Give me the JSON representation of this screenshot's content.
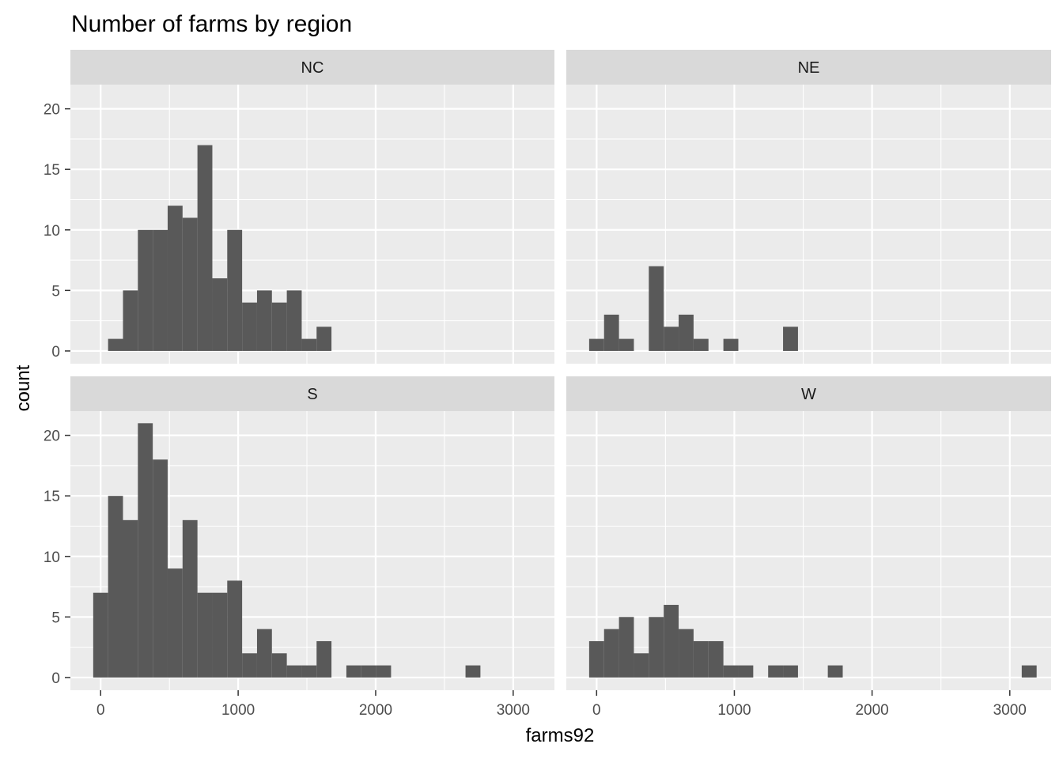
{
  "chart_data": {
    "type": "bar",
    "title": "Number of farms by region",
    "xlabel": "farms92",
    "ylabel": "count",
    "xlim": [
      -220,
      3300
    ],
    "ylim": [
      -1.05,
      22.0
    ],
    "x_ticks": [
      "0",
      "1000",
      "2000",
      "3000"
    ],
    "y_ticks": [
      "0",
      "5",
      "10",
      "15",
      "20"
    ],
    "bin_width": 108.3,
    "grid": true,
    "facets": [
      {
        "name": "NC",
        "bins": [
          {
            "x": 108.3,
            "count": 1
          },
          {
            "x": 216.6,
            "count": 5
          },
          {
            "x": 324.9,
            "count": 10
          },
          {
            "x": 433.2,
            "count": 10
          },
          {
            "x": 541.5,
            "count": 12
          },
          {
            "x": 649.8,
            "count": 11
          },
          {
            "x": 758.1,
            "count": 17
          },
          {
            "x": 866.4,
            "count": 6
          },
          {
            "x": 974.7,
            "count": 10
          },
          {
            "x": 1083.0,
            "count": 4
          },
          {
            "x": 1191.3,
            "count": 5
          },
          {
            "x": 1299.6,
            "count": 4
          },
          {
            "x": 1407.9,
            "count": 5
          },
          {
            "x": 1516.2,
            "count": 1
          },
          {
            "x": 1624.5,
            "count": 2
          }
        ]
      },
      {
        "name": "NE",
        "bins": [
          {
            "x": 0,
            "count": 1
          },
          {
            "x": 108.3,
            "count": 3
          },
          {
            "x": 216.6,
            "count": 1
          },
          {
            "x": 433.2,
            "count": 7
          },
          {
            "x": 541.5,
            "count": 2
          },
          {
            "x": 649.8,
            "count": 3
          },
          {
            "x": 758.1,
            "count": 1
          },
          {
            "x": 974.7,
            "count": 1
          },
          {
            "x": 1407.9,
            "count": 2
          }
        ]
      },
      {
        "name": "S",
        "bins": [
          {
            "x": 0,
            "count": 7
          },
          {
            "x": 108.3,
            "count": 15
          },
          {
            "x": 216.6,
            "count": 13
          },
          {
            "x": 324.9,
            "count": 21
          },
          {
            "x": 433.2,
            "count": 18
          },
          {
            "x": 541.5,
            "count": 9
          },
          {
            "x": 649.8,
            "count": 13
          },
          {
            "x": 758.1,
            "count": 7
          },
          {
            "x": 866.4,
            "count": 7
          },
          {
            "x": 974.7,
            "count": 8
          },
          {
            "x": 1083.0,
            "count": 2
          },
          {
            "x": 1191.3,
            "count": 4
          },
          {
            "x": 1299.6,
            "count": 2
          },
          {
            "x": 1407.9,
            "count": 1
          },
          {
            "x": 1516.2,
            "count": 1
          },
          {
            "x": 1624.5,
            "count": 3
          },
          {
            "x": 1841.1,
            "count": 1
          },
          {
            "x": 1949.4,
            "count": 1
          },
          {
            "x": 2057.7,
            "count": 1
          },
          {
            "x": 2707.5,
            "count": 1
          }
        ]
      },
      {
        "name": "W",
        "bins": [
          {
            "x": 0,
            "count": 3
          },
          {
            "x": 108.3,
            "count": 4
          },
          {
            "x": 216.6,
            "count": 5
          },
          {
            "x": 324.9,
            "count": 2
          },
          {
            "x": 433.2,
            "count": 5
          },
          {
            "x": 541.5,
            "count": 6
          },
          {
            "x": 649.8,
            "count": 4
          },
          {
            "x": 758.1,
            "count": 3
          },
          {
            "x": 866.4,
            "count": 3
          },
          {
            "x": 974.7,
            "count": 1
          },
          {
            "x": 1083.0,
            "count": 1
          },
          {
            "x": 1299.6,
            "count": 1
          },
          {
            "x": 1407.9,
            "count": 1
          },
          {
            "x": 1732.8,
            "count": 1
          },
          {
            "x": 3140.7,
            "count": 1
          }
        ]
      }
    ],
    "colors": {
      "bar": "#595959",
      "panel_bg": "#ebebeb",
      "strip_bg": "#d9d9d9",
      "grid": "#ffffff"
    }
  }
}
